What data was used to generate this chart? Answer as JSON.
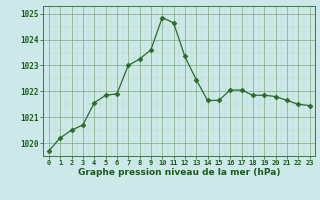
{
  "x": [
    0,
    1,
    2,
    3,
    4,
    5,
    6,
    7,
    8,
    9,
    10,
    11,
    12,
    13,
    14,
    15,
    16,
    17,
    18,
    19,
    20,
    21,
    22,
    23
  ],
  "y": [
    1019.7,
    1020.2,
    1020.5,
    1020.7,
    1021.55,
    1021.85,
    1021.9,
    1023.0,
    1023.25,
    1023.6,
    1024.85,
    1024.65,
    1023.35,
    1022.45,
    1021.65,
    1021.65,
    1022.05,
    1022.05,
    1021.85,
    1021.85,
    1021.8,
    1021.65,
    1021.5,
    1021.45
  ],
  "line_color": "#2d6a2d",
  "marker": "D",
  "marker_size": 2.5,
  "bg_color": "#cce8e8",
  "grid_major_color": "#7aaa7a",
  "grid_minor_color": "#aaccaa",
  "xlabel": "Graphe pression niveau de la mer (hPa)",
  "xlabel_color": "#1a5c1a",
  "tick_color": "#1a5c1a",
  "ylim": [
    1019.5,
    1025.3
  ],
  "yticks": [
    1020,
    1021,
    1022,
    1023,
    1024,
    1025
  ],
  "xticks": [
    0,
    1,
    2,
    3,
    4,
    5,
    6,
    7,
    8,
    9,
    10,
    11,
    12,
    13,
    14,
    15,
    16,
    17,
    18,
    19,
    20,
    21,
    22,
    23
  ]
}
